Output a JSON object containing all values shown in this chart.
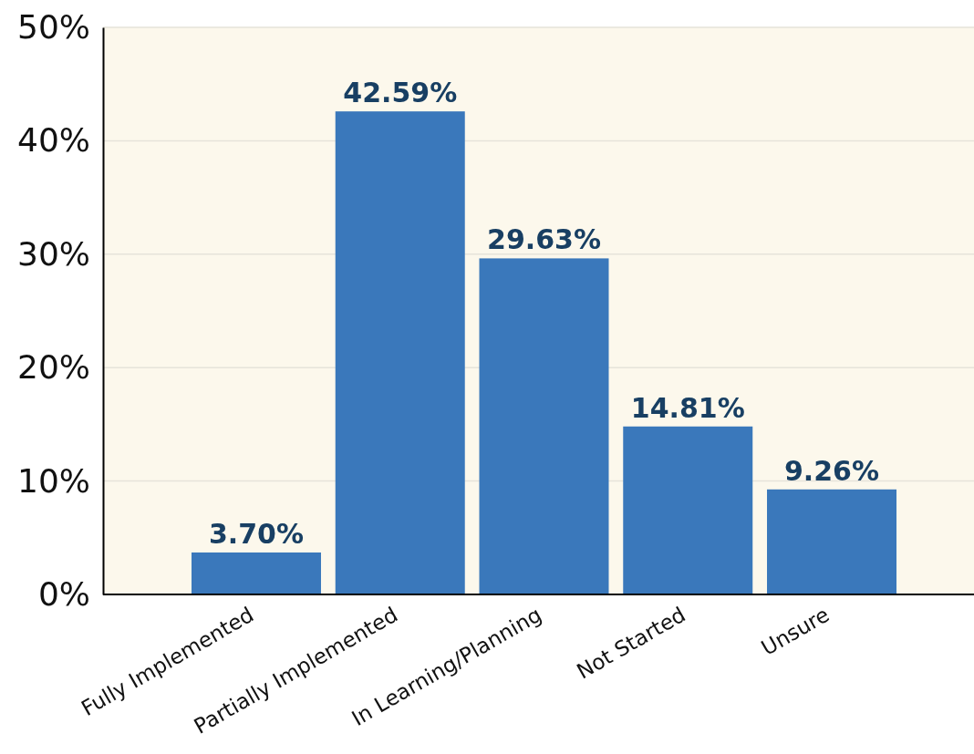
{
  "chart_data": {
    "type": "bar",
    "categories": [
      "Fully Implemented",
      "Partially Implemented",
      "In Learning/Planning",
      "Not Started",
      "Unsure"
    ],
    "values": [
      3.7,
      42.59,
      29.63,
      14.81,
      9.26
    ],
    "value_labels": [
      "3.70%",
      "42.59%",
      "29.63%",
      "14.81%",
      "9.26%"
    ],
    "color": "#3a78bb",
    "ylim": [
      0,
      50
    ],
    "yticks": [
      {
        "value": 0,
        "label": "0%"
      },
      {
        "value": 10,
        "label": "10%"
      },
      {
        "value": 20,
        "label": "20%"
      },
      {
        "value": 30,
        "label": "30%"
      },
      {
        "value": 40,
        "label": "40%"
      },
      {
        "value": 50,
        "label": "50%"
      }
    ],
    "grid": "y"
  }
}
